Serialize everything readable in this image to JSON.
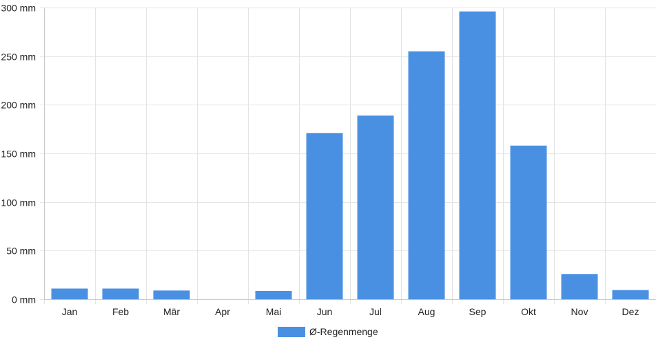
{
  "chart_data": {
    "type": "bar",
    "categories": [
      "Jan",
      "Feb",
      "Mär",
      "Apr",
      "Mai",
      "Jun",
      "Jul",
      "Aug",
      "Sep",
      "Okt",
      "Nov",
      "Dez"
    ],
    "series": [
      {
        "name": "Ø-Regenmenge",
        "values": [
          11,
          11,
          9,
          0,
          8.5,
          171,
          189,
          255,
          296,
          158,
          26,
          9.5
        ],
        "color": "#4a90e2"
      }
    ],
    "ylim": [
      0,
      300
    ],
    "yticks": [
      0,
      50,
      100,
      150,
      200,
      250,
      300
    ],
    "ytick_labels": [
      "0 mm",
      "50 mm",
      "100 mm",
      "150 mm",
      "200 mm",
      "250 mm",
      "300 mm"
    ],
    "grid": true,
    "legend_position": "bottom-center"
  }
}
